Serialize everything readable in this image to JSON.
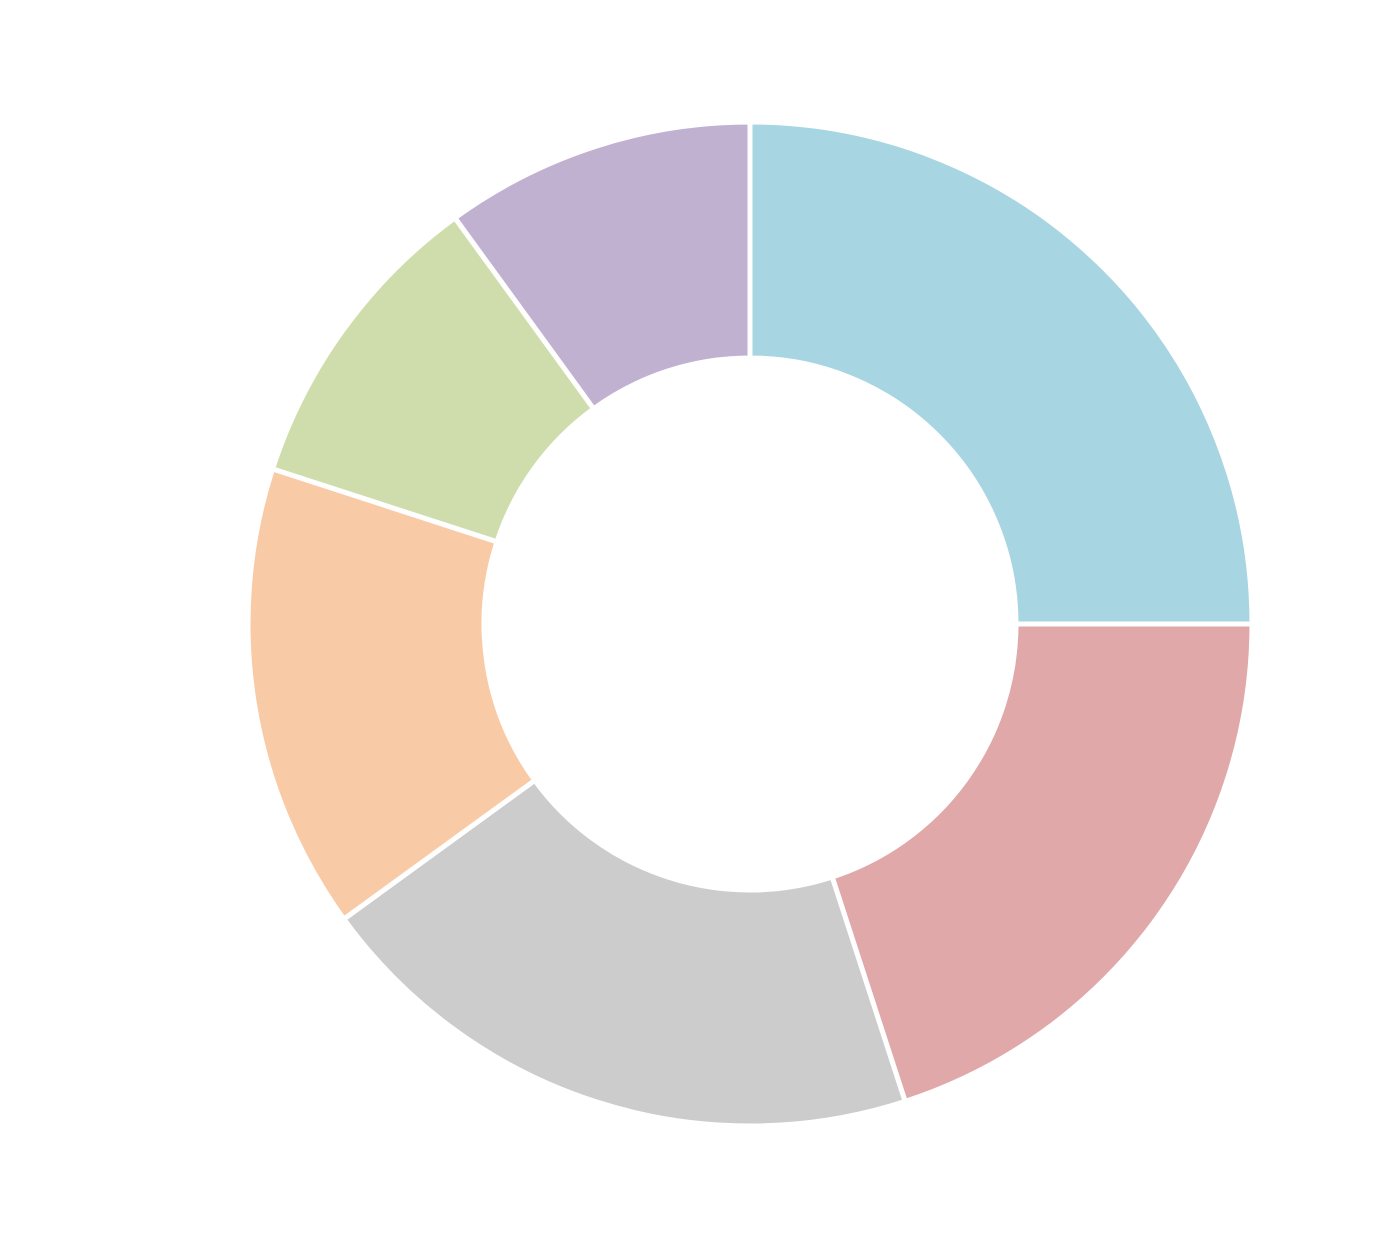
{
  "chart_data": {
    "type": "pie",
    "variant": "donut",
    "title": "",
    "legend": "none",
    "start_angle": "12 o'clock",
    "direction": "clockwise",
    "slices": [
      {
        "value": 25.0,
        "color": "#a7d5e2"
      },
      {
        "value": 20.0,
        "color": "#e0a8a8"
      },
      {
        "value": 20.0,
        "color": "#cccccc"
      },
      {
        "value": 15.0,
        "color": "#f9caa6"
      },
      {
        "value": 10.0,
        "color": "#cfddad"
      },
      {
        "value": 10.0,
        "color": "#c0b1d0"
      }
    ]
  }
}
